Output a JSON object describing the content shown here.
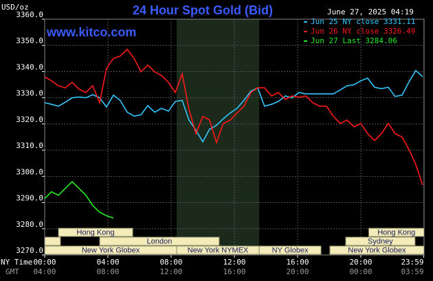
{
  "chart_data": {
    "type": "line",
    "title": "24 Hour Spot Gold (Bid)",
    "subtitle": "www.kitco.com",
    "timestamp": "June 27, 2025 04:19",
    "y_label": "USD/oz",
    "x_label": "NY Time",
    "x2_label": "GMT",
    "title_color": "#3a5bff",
    "legend": "upper right",
    "grid": true,
    "xlim": [
      0,
      24
    ],
    "ylim": [
      3270,
      3360
    ],
    "yticks": [
      {
        "value": 3270,
        "label": "3270.0"
      },
      {
        "value": 3280,
        "label": "3280.0"
      },
      {
        "value": 3290,
        "label": "3290.0"
      },
      {
        "value": 3300,
        "label": "3300.0"
      },
      {
        "value": 3310,
        "label": "3310.0"
      },
      {
        "value": 3320,
        "label": "3320.0"
      },
      {
        "value": 3330,
        "label": "3330.0"
      },
      {
        "value": 3340,
        "label": "3340.0"
      },
      {
        "value": 3350,
        "label": "3350.0"
      },
      {
        "value": 3360,
        "label": "3360.0"
      }
    ],
    "xticks": [
      {
        "value": 0,
        "label": "00:00"
      },
      {
        "value": 4,
        "label": "04:00"
      },
      {
        "value": 8,
        "label": "08:00"
      },
      {
        "value": 12,
        "label": "12:00"
      },
      {
        "value": 16,
        "label": "16:00"
      },
      {
        "value": 20,
        "label": "20:00"
      },
      {
        "value": 23.98,
        "label": "23:59"
      }
    ],
    "x2ticks": [
      {
        "value": 0,
        "label": "04:00"
      },
      {
        "value": 4,
        "label": "08:00"
      },
      {
        "value": 8,
        "label": "12:00"
      },
      {
        "value": 12,
        "label": "16:00"
      },
      {
        "value": 16,
        "label": "20:00"
      },
      {
        "value": 20,
        "label": "00:00"
      },
      {
        "value": 23.98,
        "label": "03:59"
      }
    ],
    "shaded_x": [
      8.35,
      13.57
    ],
    "session_rows": [
      [
        {
          "label": "Hong Kong",
          "start": 0.87,
          "end": 5.57
        },
        {
          "label": "Hong Kong",
          "start": 20.5,
          "end": 24
        }
      ],
      [
        {
          "label": null,
          "start": 0,
          "end": 1
        },
        {
          "label": "London",
          "start": 3.48,
          "end": 11.04
        },
        {
          "label": "Sydney",
          "start": 19.04,
          "end": 23.43
        }
      ],
      [
        {
          "label": "New York Globex",
          "start": 0,
          "end": 8.35
        },
        {
          "label": "New York NYMEX",
          "start": 8.35,
          "end": 13.57
        },
        {
          "label": "NY Globex",
          "start": 13.57,
          "end": 17.48
        },
        {
          "label": "New York Globex",
          "start": 18.04,
          "end": 24
        }
      ]
    ],
    "x": [
      0,
      0.43,
      0.87,
      1.3,
      1.74,
      2.17,
      2.61,
      3.04,
      3.48,
      3.91,
      4.35,
      4.78,
      5.22,
      5.65,
      6.09,
      6.52,
      6.96,
      7.39,
      7.83,
      8.26,
      8.7,
      9.13,
      9.57,
      10,
      10.43,
      10.87,
      11.3,
      11.74,
      12.17,
      12.61,
      13.04,
      13.48,
      13.91,
      14.35,
      14.78,
      15.22,
      15.65,
      16.09,
      16.52,
      16.96,
      17.39,
      17.83,
      18.26,
      18.7,
      19.13,
      19.57,
      20,
      20.43,
      20.87,
      21.3,
      21.74,
      22.17,
      22.61,
      23.04,
      23.48,
      23.91
    ],
    "series": [
      {
        "name": "Jun 25 NY close 3331.11",
        "color": "#33c8ff",
        "values": [
          3328.1,
          3327.5,
          3326.8,
          3328.3,
          3330,
          3330.3,
          3330,
          3331.2,
          3330,
          3326.5,
          3331,
          3329,
          3324.5,
          3323,
          3323.5,
          3327,
          3324.5,
          3326,
          3324.9,
          3328.6,
          3329,
          3321.5,
          3317.6,
          3313.2,
          3318,
          3319.5,
          3322,
          3324.2,
          3326,
          3329,
          3332.5,
          3333.8,
          3326.8,
          3327.5,
          3328.6,
          3330.7,
          3330,
          3332,
          3331.5,
          3331.5,
          3331.5,
          3331.5,
          3331.5,
          3333,
          3334.6,
          3335,
          3336.5,
          3337.5,
          3334,
          3333.5,
          3334,
          3330.5,
          3331,
          3336,
          3340.4,
          3338
        ]
      },
      {
        "name": "Jun 26 NY close 3326.49",
        "color": "#ff1a1a",
        "values": [
          3338,
          3336.5,
          3334.6,
          3333.8,
          3335.9,
          3333.3,
          3332,
          3334.6,
          3328.1,
          3341.2,
          3345.1,
          3345.9,
          3348.5,
          3345.1,
          3339.9,
          3342.5,
          3339.9,
          3338.5,
          3335.9,
          3332,
          3339.1,
          3325.5,
          3316.3,
          3322.9,
          3321.5,
          3312.9,
          3320.2,
          3321.5,
          3324.2,
          3326.8,
          3332,
          3333.8,
          3333.8,
          3330.7,
          3332,
          3329.4,
          3330.7,
          3330.2,
          3330.7,
          3328.1,
          3326.8,
          3326.8,
          3322.9,
          3320.2,
          3321.5,
          3318.9,
          3320.2,
          3316.3,
          3313.7,
          3316.3,
          3320.2,
          3316.3,
          3315,
          3310.3,
          3304.5,
          3296.7
        ]
      },
      {
        "name": "Jun 27 Last 3284.06",
        "color": "#22ee22",
        "values": [
          3291.5,
          3294.1,
          3292.8,
          3295.4,
          3298,
          3295.4,
          3292.8,
          3288.9,
          3286.3,
          3285,
          3284.1,
          null,
          null,
          null,
          null,
          null,
          null,
          null,
          null,
          null,
          null,
          null,
          null,
          null,
          null,
          null,
          null,
          null,
          null,
          null,
          null,
          null,
          null,
          null,
          null,
          null,
          null,
          null,
          null,
          null,
          null,
          null,
          null,
          null,
          null,
          null,
          null,
          null,
          null,
          null,
          null,
          null,
          null,
          null,
          null,
          null
        ]
      }
    ]
  }
}
